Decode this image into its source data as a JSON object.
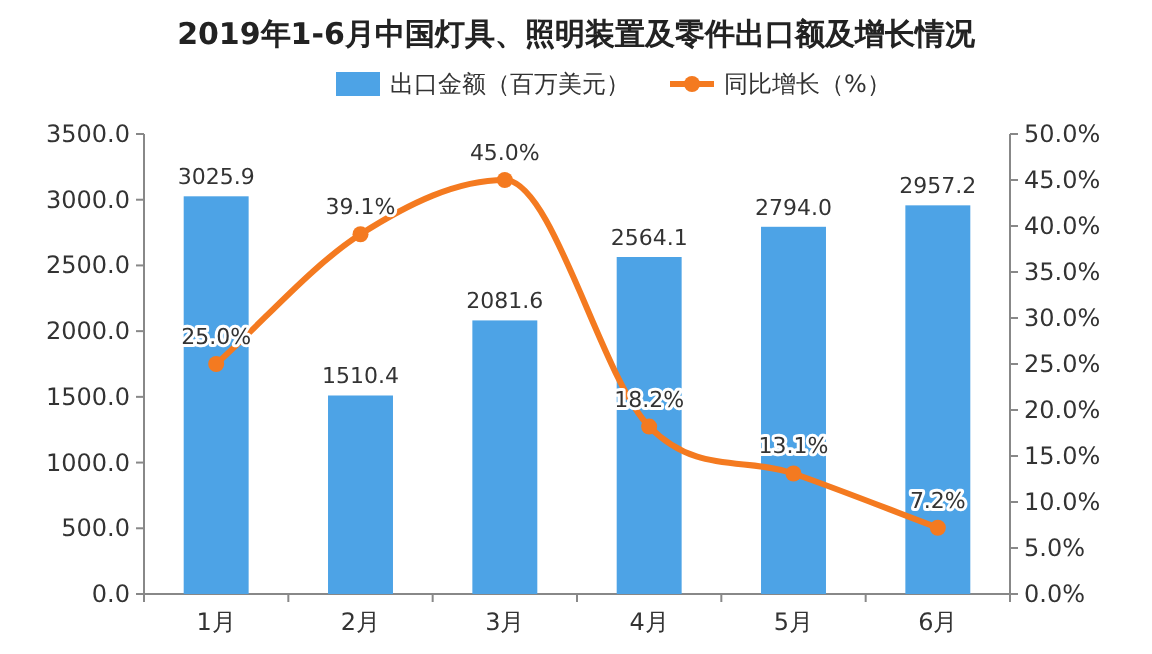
{
  "chart_data": {
    "type": "bar",
    "title": "2019年1-6月中国灯具、照明装置及零件出口额及增长情况",
    "categories": [
      "1月",
      "2月",
      "3月",
      "4月",
      "5月",
      "6月"
    ],
    "series": [
      {
        "name": "出口金额（百万美元）",
        "color": "#4da3e6",
        "values": [
          3025.9,
          1510.4,
          2081.6,
          2564.1,
          2794.0,
          2957.2
        ],
        "value_labels": [
          "3025.9",
          "1510.4",
          "2081.6",
          "2564.1",
          "2794.0",
          "2957.2"
        ]
      },
      {
        "name": "同比增长（%）",
        "type": "line",
        "axis": "y2",
        "color": "#f47a20",
        "marker": "circle",
        "values": [
          25.0,
          39.1,
          45.0,
          18.2,
          13.1,
          7.2
        ],
        "value_labels": [
          "25.0%",
          "39.1%",
          "45.0%",
          "18.2%",
          "13.1%",
          "7.2%"
        ]
      }
    ],
    "ylim": [
      0,
      3500
    ],
    "yticks": [
      {
        "value": 0,
        "label": "0.0"
      },
      {
        "value": 500,
        "label": "500.0"
      },
      {
        "value": 1000,
        "label": "1000.0"
      },
      {
        "value": 1500,
        "label": "1500.0"
      },
      {
        "value": 2000,
        "label": "2000.0"
      },
      {
        "value": 2500,
        "label": "2500.0"
      },
      {
        "value": 3000,
        "label": "3000.0"
      },
      {
        "value": 3500,
        "label": "3500.0"
      }
    ],
    "y2lim": [
      0,
      50
    ],
    "y2ticks": [
      {
        "value": 0,
        "label": "0.0%"
      },
      {
        "value": 5,
        "label": "5.0%"
      },
      {
        "value": 10,
        "label": "10.0%"
      },
      {
        "value": 15,
        "label": "15.0%"
      },
      {
        "value": 20,
        "label": "20.0%"
      },
      {
        "value": 25,
        "label": "25.0%"
      },
      {
        "value": 30,
        "label": "30.0%"
      },
      {
        "value": 35,
        "label": "35.0%"
      },
      {
        "value": 40,
        "label": "40.0%"
      },
      {
        "value": 45,
        "label": "45.0%"
      },
      {
        "value": 50,
        "label": "50.0%"
      }
    ],
    "legend": "top",
    "grid": false
  }
}
